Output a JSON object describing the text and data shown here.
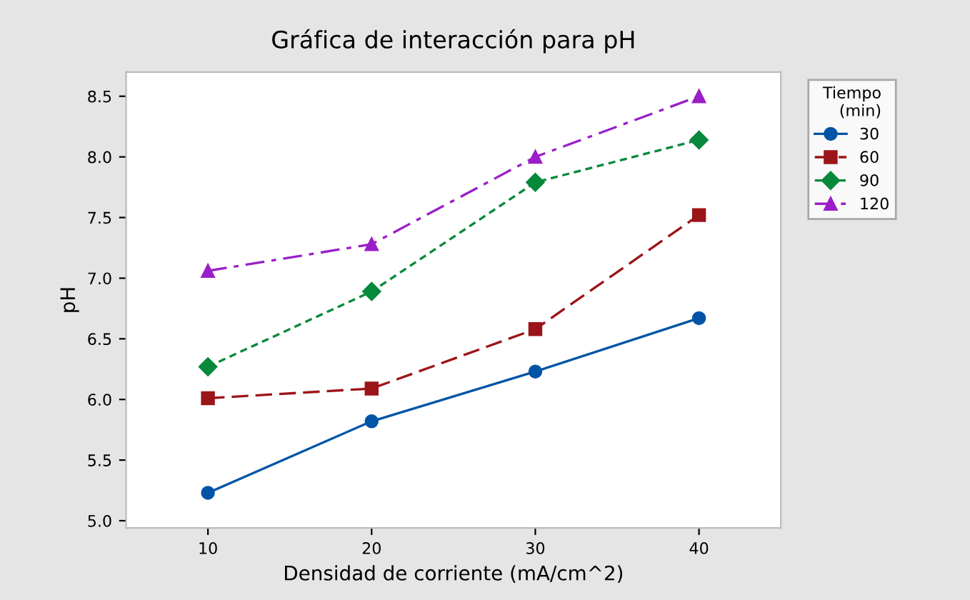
{
  "chart_data": {
    "type": "line",
    "title": "Gráfica de interacción para pH",
    "xlabel": "Densidad de corriente (mA/cm^2)",
    "ylabel": "pH",
    "legend_title": "Tiempo\n(min)",
    "legend": "right",
    "x": [
      10,
      20,
      30,
      40
    ],
    "xlim": [
      5,
      45
    ],
    "xticks": [
      10,
      20,
      30,
      40
    ],
    "ylim": [
      4.94,
      8.7
    ],
    "yticks": [
      {
        "value": 5,
        "label": "5.0"
      },
      5.5,
      {
        "value": 6,
        "label": "6.0"
      },
      6.5,
      {
        "value": 7,
        "label": "7.0"
      },
      7.5,
      {
        "value": 8,
        "label": "8.0"
      },
      8.5
    ],
    "grid": false,
    "series": [
      {
        "name": "30",
        "color": "#0054a6",
        "marker": "circle",
        "line_style": "solid",
        "values": [
          5.23,
          5.82,
          6.23,
          6.67
        ]
      },
      {
        "name": "60",
        "color": "#9b1418",
        "marker": "square",
        "line_style": "dashed",
        "values": [
          6.01,
          6.09,
          6.58,
          7.52
        ]
      },
      {
        "name": "90",
        "color": "#06893a",
        "marker": "diamond",
        "line_style": "dotted",
        "values": [
          6.27,
          6.89,
          7.79,
          8.14
        ]
      },
      {
        "name": "120",
        "color": "#9a1fc8",
        "marker": "triangle",
        "line_style": "dashdot",
        "values": [
          7.06,
          7.28,
          8.0,
          8.5
        ]
      }
    ]
  }
}
